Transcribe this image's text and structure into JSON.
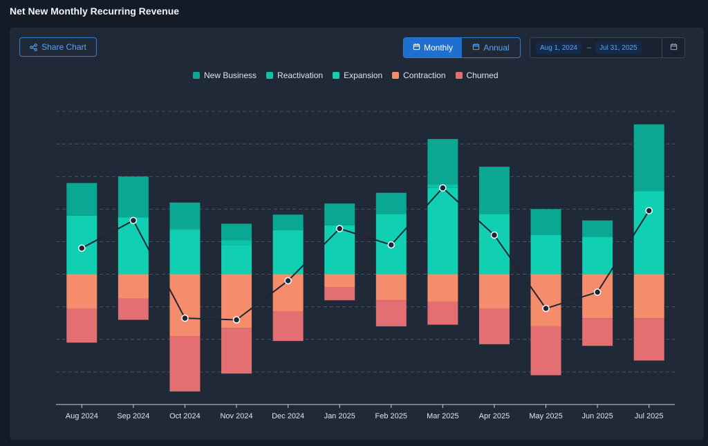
{
  "page": {
    "title": "Net New Monthly Recurring Revenue"
  },
  "toolbar": {
    "share_label": "Share Chart",
    "share_icon": "share-icon",
    "view_options": [
      {
        "label": "Monthly",
        "active": true,
        "icon": "calendar-icon"
      },
      {
        "label": "Annual",
        "active": false,
        "icon": "calendar-icon"
      }
    ],
    "date_start": "Aug 1, 2024",
    "date_separator": "–",
    "date_end": "Jul 31, 2025",
    "calendar_icon": "calendar-icon"
  },
  "colors": {
    "new_business": "#0aa892",
    "reactivation": "#0cc2a8",
    "expansion": "#10cfb2",
    "contraction": "#f58c6c",
    "churned": "#e46f72",
    "net_line": "#1c2636",
    "accent": "#1f6fd0"
  },
  "chart_data": {
    "type": "bar",
    "stacked": true,
    "categories": [
      "Aug 2024",
      "Sep 2024",
      "Oct 2024",
      "Nov 2024",
      "Dec 2024",
      "Jan 2025",
      "Feb 2025",
      "Mar 2025",
      "Apr 2025",
      "May 2025",
      "Jun 2025",
      "Jul 2025"
    ],
    "series": [
      {
        "name": "New Business",
        "values": [
          10,
          12.5,
          8,
          5,
          4.8,
          6.7,
          6.5,
          14,
          14.5,
          8,
          5,
          20.5
        ]
      },
      {
        "name": "Reactivation",
        "values": [
          0,
          0,
          0.5,
          1.5,
          0,
          0,
          0,
          1,
          0,
          0,
          0,
          0
        ]
      },
      {
        "name": "Expansion",
        "values": [
          18,
          17.5,
          13.5,
          9,
          13.5,
          15,
          18.5,
          26.5,
          18.5,
          12,
          11.5,
          25.5
        ]
      },
      {
        "name": "Contraction",
        "values": [
          -10.5,
          -7.5,
          -19,
          -16.5,
          -11.5,
          -4,
          -8,
          -8.5,
          -10.5,
          -16,
          -13.5,
          -13.5
        ]
      },
      {
        "name": "Churned",
        "values": [
          -10.5,
          -6.5,
          -17,
          -14,
          -9,
          -4,
          -8,
          -7,
          -11,
          -15,
          -8.5,
          -13
        ]
      }
    ],
    "net_values": [
      8,
      16.5,
      -13.5,
      -14,
      -2,
      14,
      9,
      26.5,
      12,
      -10.5,
      -5.5,
      19.5
    ],
    "ylim": [
      -40,
      50
    ],
    "grid": true,
    "legend_position": "top-center",
    "xlabel": "",
    "ylabel": ""
  }
}
